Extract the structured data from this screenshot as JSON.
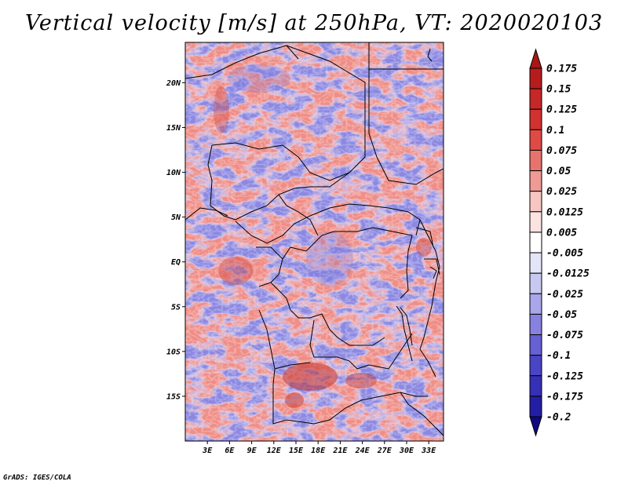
{
  "title": "Vertical velocity [m/s] at 250hPa, VT: 2020020103",
  "credit": "GrADS: IGES/COLA",
  "map": {
    "lat_labels": [
      "20N",
      "15N",
      "10N",
      "5N",
      "EQ",
      "5S",
      "10S",
      "15S"
    ],
    "lon_labels": [
      "3E",
      "6E",
      "9E",
      "12E",
      "15E",
      "18E",
      "21E",
      "24E",
      "27E",
      "30E",
      "33E"
    ],
    "lat_range": [
      -20,
      24.5
    ],
    "lon_range": [
      0,
      35
    ]
  },
  "colorbar": {
    "labels": [
      "0.175",
      "0.15",
      "0.125",
      "0.1",
      "0.075",
      "0.05",
      "0.025",
      "0.0125",
      "0.005",
      "-0.005",
      "-0.0125",
      "-0.025",
      "-0.05",
      "-0.075",
      "-0.1",
      "-0.125",
      "-0.175",
      "-0.2"
    ],
    "colors": [
      "#b71c1c",
      "#c62828",
      "#d2322f",
      "#e04a45",
      "#e8736d",
      "#ef9a95",
      "#f7c6c2",
      "#fbe3e1",
      "#ffffff",
      "#e5e5f8",
      "#c9c8f1",
      "#a9a6ea",
      "#8782e0",
      "#6660d4",
      "#4a44c6",
      "#3530b6",
      "#231ea3",
      "#151190"
    ],
    "top_color": "#a81616",
    "bottom_color": "#0f0a80"
  }
}
